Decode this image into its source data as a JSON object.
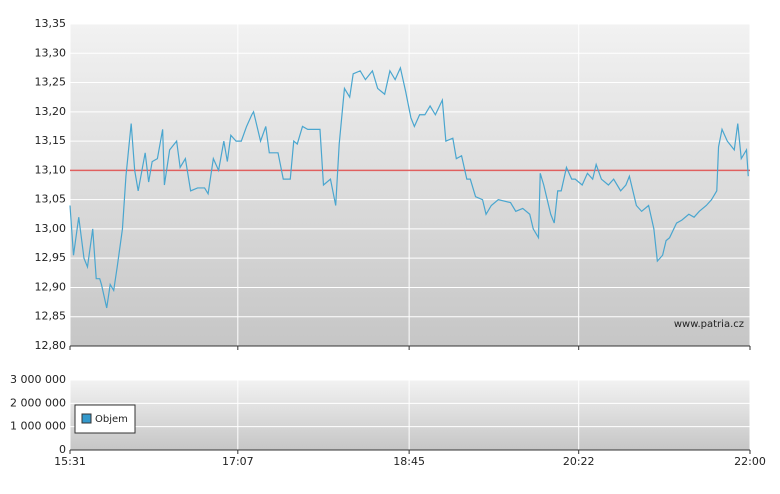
{
  "chart_data": [
    {
      "type": "line",
      "annotation": "www.patria.cz",
      "x": [
        "15:31",
        "15:33",
        "15:36",
        "15:39",
        "15:41",
        "15:44",
        "15:46",
        "15:48",
        "15:49",
        "15:52",
        "15:54",
        "15:56",
        "15:58",
        "16:01",
        "16:03",
        "16:06",
        "16:08",
        "16:10",
        "16:14",
        "16:16",
        "16:18",
        "16:21",
        "16:24",
        "16:25",
        "16:28",
        "16:32",
        "16:34",
        "16:37",
        "16:40",
        "16:44",
        "16:48",
        "16:50",
        "16:53",
        "16:56",
        "16:59",
        "17:01",
        "17:03",
        "17:06",
        "17:09",
        "17:12",
        "17:15",
        "17:16",
        "17:20",
        "17:23",
        "17:25",
        "17:30",
        "17:33",
        "17:37",
        "17:39",
        "17:41",
        "17:44",
        "17:47",
        "17:54",
        "17:56",
        "18:00",
        "18:03",
        "18:05",
        "18:08",
        "18:11",
        "18:13",
        "18:17",
        "18:20",
        "18:24",
        "18:27",
        "18:31",
        "18:34",
        "18:37",
        "18:40",
        "18:43",
        "18:46",
        "18:48",
        "18:51",
        "18:54",
        "18:57",
        "19:00",
        "19:04",
        "19:06",
        "19:10",
        "19:12",
        "19:15",
        "19:18",
        "19:20",
        "19:23",
        "19:27",
        "19:29",
        "19:32",
        "19:36",
        "19:43",
        "19:46",
        "19:50",
        "19:54",
        "19:56",
        "19:59",
        "20:00",
        "20:02",
        "20:06",
        "20:08",
        "20:10",
        "20:12",
        "20:15",
        "20:18",
        "20:20",
        "20:24",
        "20:27",
        "20:30",
        "20:32",
        "20:35",
        "20:39",
        "20:42",
        "20:46",
        "20:49",
        "20:51",
        "20:55",
        "20:58",
        "21:02",
        "21:05",
        "21:07",
        "21:10",
        "21:12",
        "21:14",
        "21:18",
        "21:21",
        "21:25",
        "21:28",
        "21:31",
        "21:35",
        "21:38",
        "21:41",
        "21:42",
        "21:44",
        "21:47",
        "21:51",
        "21:53",
        "21:55",
        "21:58",
        "21:59"
      ],
      "series": [
        {
          "color": "#4aa6cf",
          "values": [
            13.04,
            12.955,
            13.02,
            12.95,
            12.935,
            13.0,
            12.915,
            12.915,
            12.905,
            12.865,
            12.905,
            12.895,
            12.935,
            13.0,
            13.09,
            13.18,
            13.1,
            13.065,
            13.13,
            13.08,
            13.115,
            13.12,
            13.17,
            13.075,
            13.135,
            13.15,
            13.105,
            13.12,
            13.065,
            13.07,
            13.07,
            13.06,
            13.12,
            13.1,
            13.15,
            13.115,
            13.16,
            13.15,
            13.15,
            13.175,
            13.195,
            13.2,
            13.15,
            13.175,
            13.13,
            13.13,
            13.085,
            13.085,
            13.15,
            13.145,
            13.175,
            13.17,
            13.17,
            13.075,
            13.085,
            13.04,
            13.145,
            13.24,
            13.225,
            13.265,
            13.27,
            13.255,
            13.27,
            13.24,
            13.23,
            13.27,
            13.255,
            13.275,
            13.235,
            13.19,
            13.175,
            13.195,
            13.195,
            13.21,
            13.195,
            13.22,
            13.15,
            13.155,
            13.12,
            13.125,
            13.085,
            13.085,
            13.055,
            13.05,
            13.025,
            13.04,
            13.05,
            13.045,
            13.03,
            13.035,
            13.025,
            13.0,
            12.985,
            13.095,
            13.075,
            13.025,
            13.01,
            13.065,
            13.065,
            13.105,
            13.085,
            13.085,
            13.075,
            13.095,
            13.085,
            13.11,
            13.085,
            13.075,
            13.085,
            13.065,
            13.075,
            13.09,
            13.04,
            13.03,
            13.04,
            13.0,
            12.945,
            12.955,
            12.98,
            12.985,
            13.01,
            13.015,
            13.025,
            13.02,
            13.03,
            13.04,
            13.05,
            13.065,
            13.14,
            13.17,
            13.15,
            13.135,
            13.18,
            13.12,
            13.135,
            13.09
          ]
        }
      ],
      "reference_line": {
        "value": 13.1,
        "color": "#e0605f"
      },
      "ylim": [
        12.8,
        13.35
      ],
      "yticks": [
        {
          "value": 12.8,
          "label": "12,80"
        },
        {
          "value": 12.85,
          "label": "12,85"
        },
        {
          "value": 12.9,
          "label": "12,90"
        },
        {
          "value": 12.95,
          "label": "12,95"
        },
        {
          "value": 13.0,
          "label": "13,00"
        },
        {
          "value": 13.05,
          "label": "13,05"
        },
        {
          "value": 13.1,
          "label": "13,10"
        },
        {
          "value": 13.15,
          "label": "13,15"
        },
        {
          "value": 13.2,
          "label": "13,20"
        },
        {
          "value": 13.25,
          "label": "13,25"
        },
        {
          "value": 13.3,
          "label": "13,30"
        },
        {
          "value": 13.35,
          "label": "13,35"
        }
      ],
      "grid": true
    },
    {
      "type": "bar",
      "series": [
        {
          "name": "Objem",
          "color": "#3399cc",
          "values": []
        }
      ],
      "xlim": [
        "15:31",
        "22:00"
      ],
      "xticks": [
        "15:31",
        "17:07",
        "18:45",
        "20:22",
        "22:00"
      ],
      "ylim": [
        0,
        3000000
      ],
      "yticks": [
        0,
        {
          "value": 1000000,
          "label": "1 000 000"
        },
        {
          "value": 2000000,
          "label": "2 000 000"
        },
        {
          "value": 3000000,
          "label": "3 000 000"
        }
      ],
      "grid": true
    }
  ]
}
